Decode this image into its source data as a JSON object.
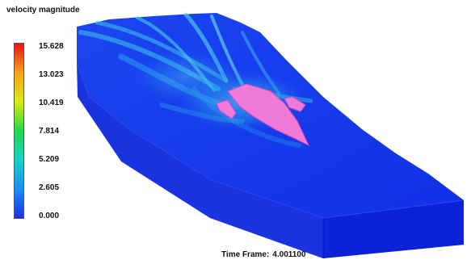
{
  "legend": {
    "title": "velocity magnitude",
    "ticks": [
      "15.628",
      "13.023",
      "10.419",
      "7.814",
      "5.209",
      "2.605",
      "0.000"
    ],
    "min": 0.0,
    "max": 15.628,
    "colors": {
      "high": "#e8141a",
      "upper": "#f7a21b",
      "mid_high": "#d8ea1a",
      "mid": "#23d84a",
      "mid_low": "#1ad0c8",
      "low": "#1c8ef0",
      "min": "#1b2fe6"
    }
  },
  "scene": {
    "domain_color": "#1230e8",
    "side_color": "#0a1fd2",
    "wake_color": "#38c7e8",
    "body_color": "#f07ad8"
  },
  "time_frame": {
    "label": "Time Frame:",
    "value": "4.001100"
  }
}
